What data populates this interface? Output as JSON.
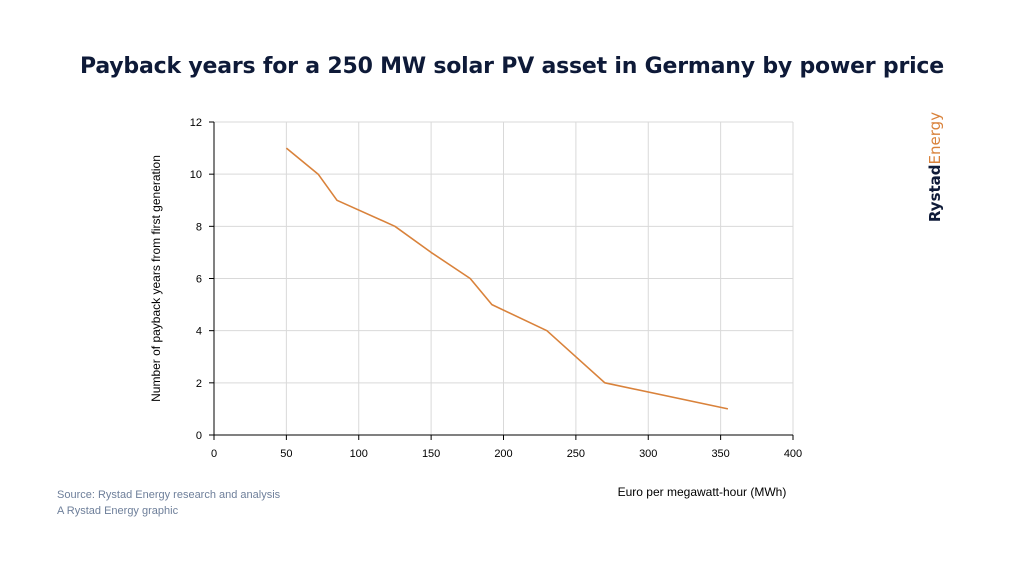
{
  "title": "Payback years for a 250 MW solar PV asset in Germany by power price",
  "brand": {
    "part1": "Rystad",
    "part2": "Energy"
  },
  "footer": {
    "source": "Source: Rystad Energy research and analysis",
    "credit": "A Rystad Energy graphic"
  },
  "colors": {
    "line": "#d9823b",
    "title": "#0e1a38",
    "grid": "#d9d9d9"
  },
  "chart_data": {
    "type": "line",
    "title": "Payback years for a 250 MW solar PV asset in Germany by power price",
    "xlabel": "Euro per megawatt-hour (MWh)",
    "ylabel": "Number of payback years from first generation",
    "xlim": [
      0,
      400
    ],
    "ylim": [
      0,
      12
    ],
    "xticks": [
      0,
      50,
      100,
      150,
      200,
      250,
      300,
      350,
      400
    ],
    "yticks": [
      0,
      2,
      4,
      6,
      8,
      10,
      12
    ],
    "grid": true,
    "legend": "none",
    "series": [
      {
        "x": [
          50,
          72,
          85,
          125,
          150,
          177,
          192,
          230,
          250,
          270,
          355
        ],
        "y": [
          11,
          10,
          9,
          8,
          7,
          6,
          5,
          4,
          3,
          2,
          1
        ]
      }
    ]
  }
}
